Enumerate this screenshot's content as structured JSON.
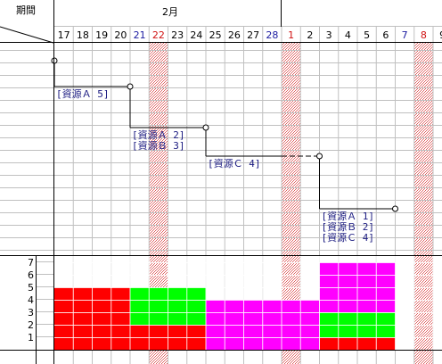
{
  "header": {
    "period_label": "期間",
    "month_label": "2月"
  },
  "days": [
    {
      "label": "17",
      "color": "#000000",
      "holiday": false
    },
    {
      "label": "18",
      "color": "#000000",
      "holiday": false
    },
    {
      "label": "19",
      "color": "#000000",
      "holiday": false
    },
    {
      "label": "20",
      "color": "#000000",
      "holiday": false
    },
    {
      "label": "21",
      "color": "#1a1aa0",
      "holiday": false
    },
    {
      "label": "22",
      "color": "#d01010",
      "holiday": true
    },
    {
      "label": "23",
      "color": "#000000",
      "holiday": false
    },
    {
      "label": "24",
      "color": "#000000",
      "holiday": false
    },
    {
      "label": "25",
      "color": "#000000",
      "holiday": false
    },
    {
      "label": "26",
      "color": "#000000",
      "holiday": false
    },
    {
      "label": "27",
      "color": "#000000",
      "holiday": false
    },
    {
      "label": "28",
      "color": "#1a1aa0",
      "holiday": false
    },
    {
      "label": "1",
      "color": "#d01010",
      "holiday": true
    },
    {
      "label": "2",
      "color": "#000000",
      "holiday": false
    },
    {
      "label": "3",
      "color": "#000000",
      "holiday": false
    },
    {
      "label": "4",
      "color": "#000000",
      "holiday": false
    },
    {
      "label": "5",
      "color": "#000000",
      "holiday": false
    },
    {
      "label": "6",
      "color": "#000000",
      "holiday": false
    },
    {
      "label": "7",
      "color": "#1a1aa0",
      "holiday": false
    },
    {
      "label": "8",
      "color": "#d01010",
      "holiday": true
    },
    {
      "label": "9",
      "color": "#000000",
      "holiday": false
    }
  ],
  "tasks": [
    {
      "start_day": 0,
      "end_day": 4,
      "labels": [
        "[資源Ａ 5]"
      ]
    },
    {
      "start_day": 4,
      "end_day": 8,
      "labels": [
        "[資源Ａ 2]",
        "[資源Ｂ 3]"
      ]
    },
    {
      "start_day": 8,
      "end_day": 14,
      "labels": [
        "[資源Ｃ 4]"
      ]
    },
    {
      "start_day": 14,
      "end_day": 18,
      "labels": [
        "[資源Ａ 1]",
        "[資源Ｂ 2]",
        "[資源Ｃ 4]"
      ]
    }
  ],
  "chart_data": {
    "type": "bar",
    "stacked": true,
    "categories": [
      "17",
      "18",
      "19",
      "20",
      "21",
      "22",
      "23",
      "24",
      "25",
      "26",
      "27",
      "28",
      "1",
      "2",
      "3",
      "4",
      "5",
      "6",
      "7",
      "8",
      "9"
    ],
    "y_ticks": [
      "1",
      "2",
      "3",
      "4",
      "5",
      "6",
      "7"
    ],
    "ylim": [
      0,
      7.5
    ],
    "series": [
      {
        "color": "#ff0000",
        "values": [
          5,
          5,
          5,
          5,
          2,
          2,
          2,
          2,
          0,
          0,
          0,
          0,
          0,
          0,
          1,
          1,
          1,
          1,
          0,
          0,
          0
        ]
      },
      {
        "color": "#00ff00",
        "values": [
          0,
          0,
          0,
          0,
          3,
          3,
          3,
          3,
          0,
          0,
          0,
          0,
          0,
          0,
          2,
          2,
          2,
          2,
          0,
          0,
          0
        ]
      },
      {
        "color": "#ff00ff",
        "values": [
          0,
          0,
          0,
          0,
          0,
          0,
          0,
          0,
          4,
          4,
          4,
          4,
          4,
          4,
          4,
          4,
          4,
          4,
          0,
          0,
          0
        ]
      }
    ]
  },
  "colors": {
    "grid": "#c0c0c0",
    "frame": "#000000",
    "label_text": "#1a1a80",
    "holiday_hatch": "#e06060"
  }
}
